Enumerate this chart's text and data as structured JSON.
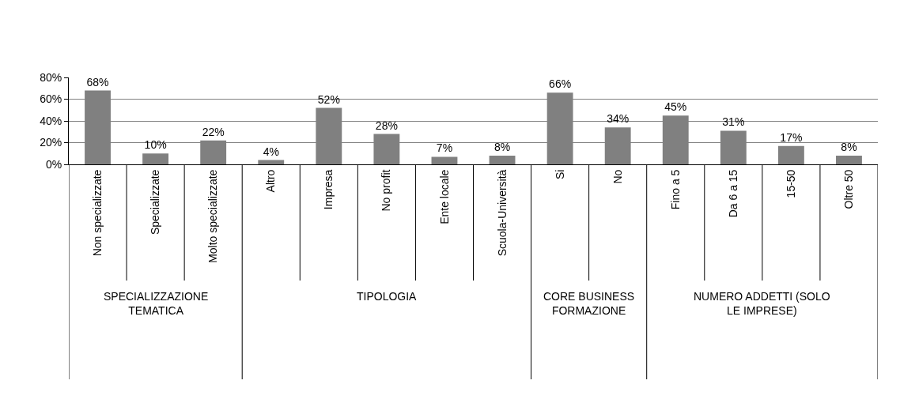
{
  "chart_data": {
    "type": "bar",
    "categories": [
      "Non specializzate",
      "Specializzate",
      "Molto specializzate",
      "Altro",
      "Impresa",
      "No profit",
      "Ente locale",
      "Scuola-Università",
      "Si",
      "No",
      "Fino a 5",
      "Da 6 a 15",
      "15-50",
      "Oltre 50"
    ],
    "values": [
      68,
      10,
      22,
      4,
      52,
      28,
      7,
      8,
      66,
      34,
      45,
      31,
      17,
      8
    ],
    "value_labels": [
      "68%",
      "10%",
      "22%",
      "4%",
      "52%",
      "28%",
      "7%",
      "8%",
      "66%",
      "34%",
      "45%",
      "31%",
      "17%",
      "8%"
    ],
    "color": "#808080",
    "ylim": [
      0,
      80
    ],
    "yticks": [
      {
        "value": 0,
        "label": "0%"
      },
      {
        "value": 20,
        "label": "20%"
      },
      {
        "value": 40,
        "label": "40%"
      },
      {
        "value": 60,
        "label": "60%"
      },
      {
        "value": 80,
        "label": "80%"
      }
    ],
    "grid": "y",
    "legend": false,
    "annotations": [
      "SPECIALIZZAZIONE TEMATICA",
      "TIPOLOGIA",
      "CORE BUSINESS FORMAZIONE",
      "NUMERO ADDETTI (SOLO LE IMPRESE)"
    ]
  }
}
